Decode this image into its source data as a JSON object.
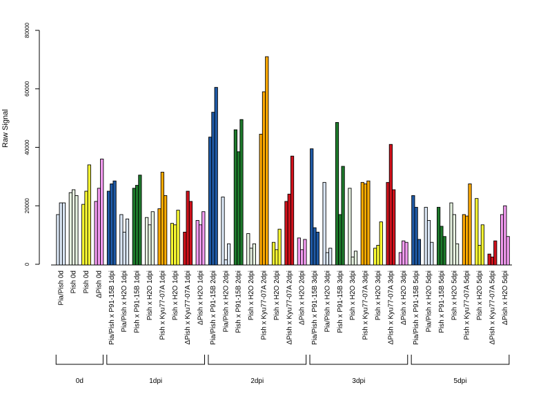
{
  "chart_data": {
    "type": "bar",
    "title": "",
    "xlabel": "",
    "ylabel": "Raw Signal",
    "ylim": [
      0,
      80000
    ],
    "yticks": [
      0,
      20000,
      40000,
      60000,
      80000
    ],
    "grid": false,
    "legend": "none",
    "colors": {
      "lightblue": "#dce8f7",
      "lightgreen": "#e6f2e0",
      "yellow": "#ffff33",
      "pink": "#f49cf2",
      "blue": "#1f5aa6",
      "green": "#1e7a2c",
      "orange": "#ffaa00",
      "red": "#d0121c"
    },
    "groups": [
      {
        "label": "0d",
        "start": 0,
        "end": 3
      },
      {
        "label": "1dpi",
        "start": 4,
        "end": 11
      },
      {
        "label": "2dpi",
        "start": 12,
        "end": 19
      },
      {
        "label": "3dpi",
        "start": 20,
        "end": 27
      },
      {
        "label": "5dpi",
        "start": 28,
        "end": 35
      }
    ],
    "categories": [
      {
        "label": "Pia/Pish 0d",
        "color": "lightblue",
        "values": [
          17000,
          21000,
          21000
        ]
      },
      {
        "label": "Pish 0d",
        "color": "lightgreen",
        "values": [
          24500,
          25500,
          23500
        ]
      },
      {
        "label": "Pish 0d",
        "color": "yellow",
        "values": [
          20500,
          25000,
          34000
        ]
      },
      {
        "label": "ΔPish 0d",
        "color": "pink",
        "values": [
          21500,
          26000,
          36000
        ]
      },
      {
        "label": "Pia/Pish x P91-15B 1dpi",
        "color": "blue",
        "values": [
          25000,
          27500,
          28500
        ]
      },
      {
        "label": "Pia/Pish x H2O 1dpi",
        "color": "lightblue",
        "values": [
          17000,
          11000,
          15500
        ]
      },
      {
        "label": "Pish x P91-15B 1dpi",
        "color": "green",
        "values": [
          26000,
          27000,
          30500
        ]
      },
      {
        "label": "Pish x H2O 1dpi",
        "color": "lightgreen",
        "values": [
          16000,
          13500,
          18000
        ]
      },
      {
        "label": "Pish x Kyu77-07A 1dpi",
        "color": "orange",
        "values": [
          19000,
          31500,
          23500
        ]
      },
      {
        "label": "Pish x H2O 1dpi",
        "color": "yellow",
        "values": [
          14000,
          13500,
          18500
        ]
      },
      {
        "label": "ΔPish x Kyu77-07A 1dpi",
        "color": "red",
        "values": [
          11000,
          25000,
          21500
        ]
      },
      {
        "label": "ΔPish x H2O 1dpi",
        "color": "pink",
        "values": [
          15000,
          13500,
          18000
        ]
      },
      {
        "label": "Pia/Pish x P91-15B 2dpi",
        "color": "blue",
        "values": [
          43500,
          52000,
          60500
        ]
      },
      {
        "label": "Pia/Pish x H2O 2dpi",
        "color": "lightblue",
        "values": [
          23000,
          1500,
          7000
        ]
      },
      {
        "label": "Pish x P91-15B 2dpi",
        "color": "green",
        "values": [
          46000,
          38500,
          49500
        ]
      },
      {
        "label": "Pish x H2O 2dpi",
        "color": "lightgreen",
        "values": [
          10500,
          5500,
          7000
        ]
      },
      {
        "label": "Pish x Kyu77-07A 2dpi",
        "color": "orange",
        "values": [
          44500,
          59000,
          71000
        ]
      },
      {
        "label": "Pish x H2O 2dpi",
        "color": "yellow",
        "values": [
          7500,
          5000,
          12000
        ]
      },
      {
        "label": "ΔPish x Kyu77-07A 2dpi",
        "color": "red",
        "values": [
          21500,
          24000,
          37000
        ]
      },
      {
        "label": "ΔPish x H2O 2dpi",
        "color": "pink",
        "values": [
          9000,
          5000,
          8500
        ]
      },
      {
        "label": "Pia/Pish x P91-15B 3dpi",
        "color": "blue",
        "values": [
          39500,
          12500,
          11000
        ]
      },
      {
        "label": "Pia/Pish x H2O 3dpi",
        "color": "lightblue",
        "values": [
          28000,
          4000,
          5500
        ]
      },
      {
        "label": "Pish x P91-15B 3dpi",
        "color": "green",
        "values": [
          48500,
          17000,
          33500
        ]
      },
      {
        "label": "Pish x H2O 3dpi",
        "color": "lightgreen",
        "values": [
          26000,
          2500,
          4500
        ]
      },
      {
        "label": "Pish x Kyu77-07A 3dpi",
        "color": "orange",
        "values": [
          28000,
          27500,
          28500
        ]
      },
      {
        "label": "Pish x H2O 3dpi",
        "color": "yellow",
        "values": [
          5500,
          6500,
          14500
        ]
      },
      {
        "label": "ΔPish x Kyu77-07A 3dpi",
        "color": "red",
        "values": [
          28000,
          41000,
          25500
        ]
      },
      {
        "label": "ΔPish x H2O 3dpi",
        "color": "pink",
        "values": [
          4000,
          8000,
          7500
        ]
      },
      {
        "label": "Pia/Pish x P91-15B 5dpi",
        "color": "blue",
        "values": [
          23500,
          19500,
          8500
        ]
      },
      {
        "label": "Pia/Pish x H2O 5dpi",
        "color": "lightblue",
        "values": [
          19500,
          15000,
          7500
        ]
      },
      {
        "label": "Pish x P91-15B 5dpi",
        "color": "green",
        "values": [
          19500,
          13000,
          9500
        ]
      },
      {
        "label": "Pish x H2O 5dpi",
        "color": "lightgreen",
        "values": [
          21000,
          17000,
          7000
        ]
      },
      {
        "label": "Pish x Kyu77-07A 5dpi",
        "color": "orange",
        "values": [
          17000,
          16500,
          27500
        ]
      },
      {
        "label": "Pish x H2O 5dpi",
        "color": "yellow",
        "values": [
          22500,
          6500,
          13500
        ]
      },
      {
        "label": "ΔPish x Kyu77-07A 5dpi",
        "color": "red",
        "values": [
          3500,
          2500,
          8000
        ]
      },
      {
        "label": "ΔPish x H2O 5dpi",
        "color": "pink",
        "values": [
          17000,
          20000,
          9500
        ]
      }
    ]
  }
}
